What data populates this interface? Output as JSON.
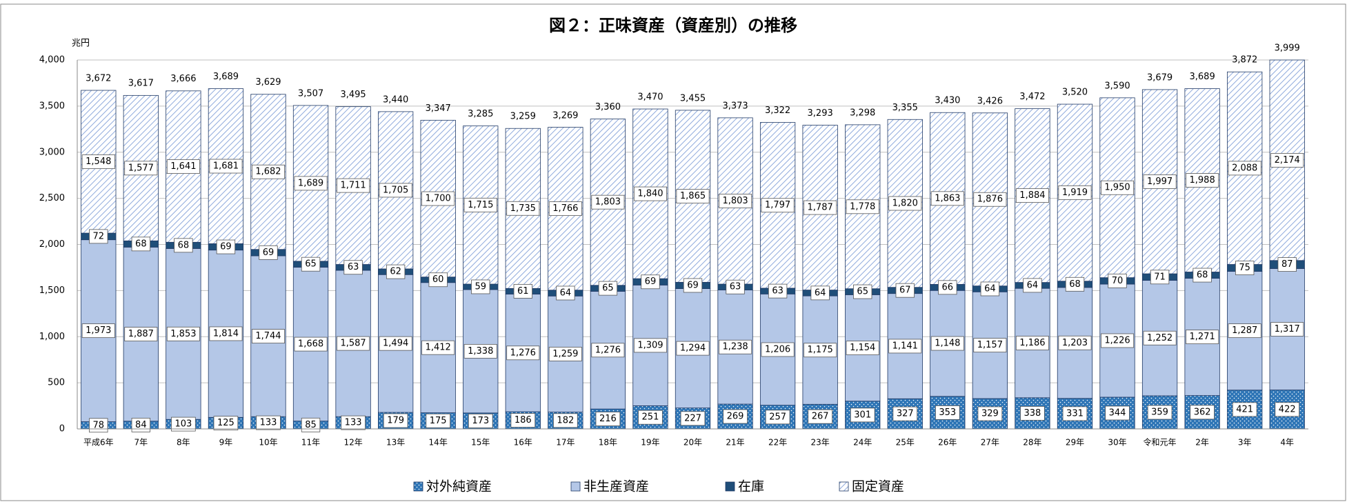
{
  "chart_data": {
    "type": "stacked-bar",
    "title": "図２：正味資産（資産別）の推移",
    "y_label": "兆円",
    "categories": [
      "平成6年",
      "7年",
      "8年",
      "9年",
      "10年",
      "11年",
      "12年",
      "13年",
      "14年",
      "15年",
      "16年",
      "17年",
      "18年",
      "19年",
      "20年",
      "21年",
      "22年",
      "23年",
      "24年",
      "25年",
      "26年",
      "27年",
      "28年",
      "29年",
      "30年",
      "令和元年",
      "2年",
      "3年",
      "4年"
    ],
    "series": [
      {
        "name": "対外純資産",
        "color": "#2e75b6",
        "pattern": "dots",
        "values": [
          78,
          84,
          103,
          125,
          133,
          85,
          133,
          179,
          175,
          173,
          186,
          182,
          216,
          251,
          227,
          269,
          257,
          267,
          301,
          327,
          353,
          329,
          338,
          331,
          344,
          359,
          362,
          421,
          422
        ]
      },
      {
        "name": "非生産資産",
        "color": "#b4c7e7",
        "pattern": "solid",
        "values": [
          1973,
          1887,
          1853,
          1814,
          1744,
          1668,
          1587,
          1494,
          1412,
          1338,
          1276,
          1259,
          1276,
          1309,
          1294,
          1238,
          1206,
          1175,
          1154,
          1141,
          1148,
          1157,
          1186,
          1203,
          1226,
          1252,
          1271,
          1287,
          1317
        ],
        "value_labels": [
          "1,973",
          "1,887",
          "1,853",
          "1,814",
          "1,744",
          "1,668",
          "1,587",
          "1,494",
          "1,412",
          "1,338",
          "1,276",
          "1,259",
          "1,276",
          "1,309",
          "1,294",
          "1,238",
          "1,206",
          "1,175",
          "1,154",
          "1,141",
          "1,148",
          "1,157",
          "1,186",
          "1,203",
          "1,226",
          "1,252",
          "1,271",
          "1,287",
          "1,317"
        ]
      },
      {
        "name": "在庫",
        "color": "#1f4e79",
        "pattern": "solid",
        "values": [
          72,
          68,
          68,
          69,
          69,
          65,
          63,
          62,
          60,
          59,
          61,
          64,
          65,
          69,
          69,
          63,
          63,
          64,
          65,
          67,
          66,
          64,
          64,
          68,
          70,
          71,
          68,
          75,
          87
        ]
      },
      {
        "name": "固定資産",
        "color": "#8faadc",
        "pattern": "hatch",
        "values": [
          1548,
          1577,
          1641,
          1681,
          1682,
          1689,
          1711,
          1705,
          1700,
          1715,
          1735,
          1766,
          1803,
          1840,
          1865,
          1803,
          1797,
          1787,
          1778,
          1820,
          1863,
          1876,
          1884,
          1919,
          1950,
          1997,
          1988,
          2088,
          2174
        ],
        "value_labels": [
          "1,548",
          "1,577",
          "1,641",
          "1,681",
          "1,682",
          "1,689",
          "1,711",
          "1,705",
          "1,700",
          "1,715",
          "1,735",
          "1,766",
          "1,803",
          "1,840",
          "1,865",
          "1,803",
          "1,797",
          "1,787",
          "1,778",
          "1,820",
          "1,863",
          "1,876",
          "1,884",
          "1,919",
          "1,950",
          "1,997",
          "1,988",
          "2,088",
          "2,174"
        ]
      }
    ],
    "totals": {
      "values": [
        3672,
        3617,
        3666,
        3689,
        3629,
        3507,
        3495,
        3440,
        3347,
        3285,
        3259,
        3269,
        3360,
        3470,
        3455,
        3373,
        3322,
        3293,
        3298,
        3355,
        3430,
        3426,
        3472,
        3520,
        3590,
        3679,
        3689,
        3872,
        3999
      ],
      "value_labels": [
        "3,672",
        "3,617",
        "3,666",
        "3,689",
        "3,629",
        "3,507",
        "3,495",
        "3,440",
        "3,347",
        "3,285",
        "3,259",
        "3,269",
        "3,360",
        "3,470",
        "3,455",
        "3,373",
        "3,322",
        "3,293",
        "3,298",
        "3,355",
        "3,430",
        "3,426",
        "3,472",
        "3,520",
        "3,590",
        "3,679",
        "3,689",
        "3,872",
        "3,999"
      ]
    },
    "ylim": [
      0,
      4000
    ],
    "yticks": [
      0,
      500,
      {
        "value": 1000,
        "label": "1,000"
      },
      {
        "value": 1500,
        "label": "1,500"
      },
      {
        "value": 2000,
        "label": "2,000"
      },
      {
        "value": 2500,
        "label": "2,500"
      },
      {
        "value": 3000,
        "label": "3,000"
      },
      {
        "value": 3500,
        "label": "3,500"
      },
      {
        "value": 4000,
        "label": "4,000"
      }
    ],
    "grid": true,
    "legend": "bottom"
  }
}
